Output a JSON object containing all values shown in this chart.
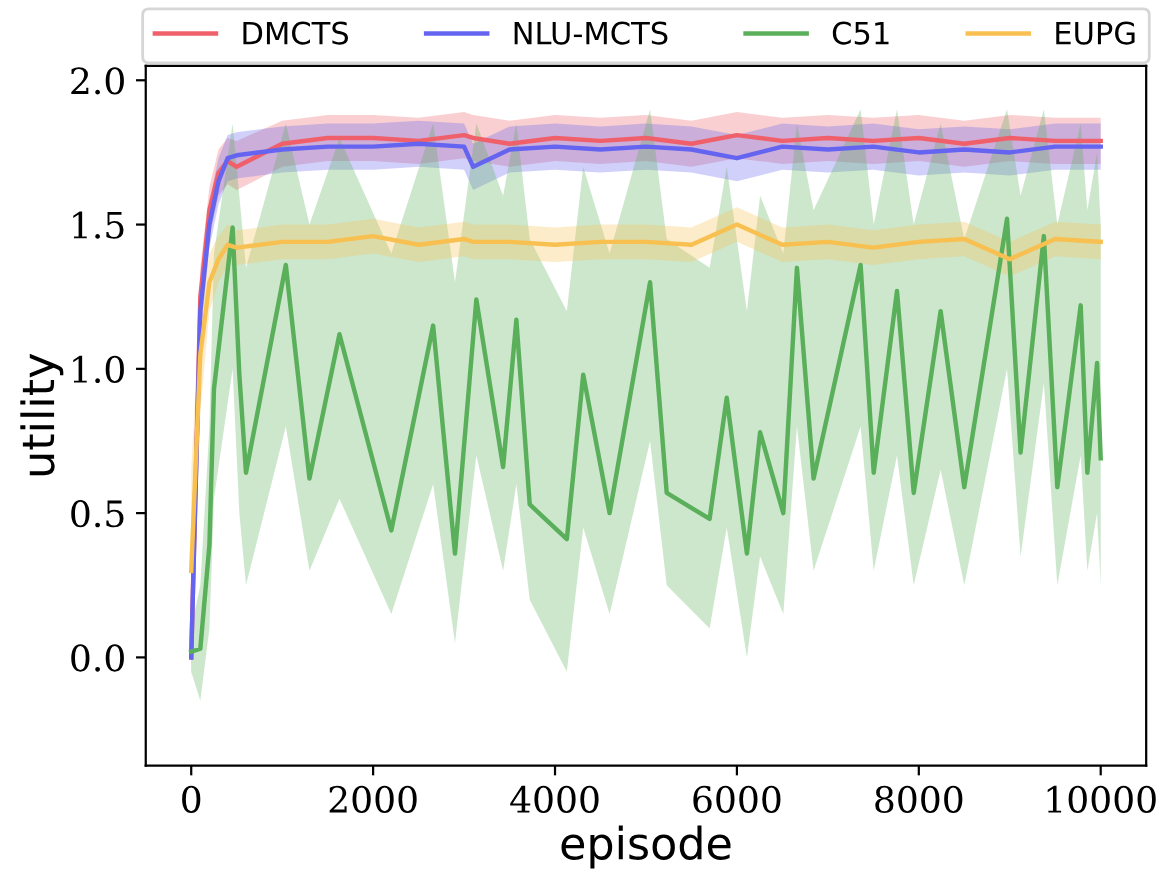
{
  "chart_data": {
    "type": "line",
    "xlabel": "episode",
    "ylabel": "utility",
    "xlim": [
      -500,
      10500
    ],
    "ylim": [
      -0.375,
      2.05
    ],
    "xticks": [
      0,
      2000,
      4000,
      6000,
      8000,
      10000
    ],
    "yticks": [
      {
        "value": 0,
        "label": "0.0"
      },
      {
        "value": 0.5,
        "label": "0.5"
      },
      {
        "value": 1,
        "label": "1.0"
      },
      {
        "value": 1.5,
        "label": "1.5"
      },
      {
        "value": 2,
        "label": "2.0"
      }
    ],
    "grid": false,
    "legend": "top",
    "marker": "none",
    "line_style": "solid",
    "series": [
      {
        "name": "DMCTS",
        "color": "#f0606a",
        "x": [
          0,
          100,
          200,
          300,
          400,
          500,
          1000,
          1500,
          2000,
          2500,
          3000,
          3100,
          3500,
          4000,
          4500,
          5000,
          5500,
          6000,
          6500,
          7000,
          7500,
          8000,
          8500,
          9000,
          9500,
          10000
        ],
        "values": [
          0.0,
          1.25,
          1.55,
          1.68,
          1.72,
          1.7,
          1.78,
          1.8,
          1.8,
          1.79,
          1.81,
          1.8,
          1.78,
          1.8,
          1.79,
          1.8,
          1.78,
          1.81,
          1.79,
          1.8,
          1.79,
          1.8,
          1.78,
          1.8,
          1.79,
          1.79
        ],
        "lower": [
          -0.02,
          1.15,
          1.46,
          1.6,
          1.64,
          1.62,
          1.7,
          1.72,
          1.72,
          1.71,
          1.73,
          1.72,
          1.7,
          1.72,
          1.71,
          1.72,
          1.7,
          1.73,
          1.71,
          1.72,
          1.71,
          1.72,
          1.7,
          1.72,
          1.71,
          1.71
        ],
        "upper": [
          0.02,
          1.35,
          1.63,
          1.76,
          1.8,
          1.79,
          1.86,
          1.88,
          1.88,
          1.87,
          1.89,
          1.88,
          1.86,
          1.88,
          1.87,
          1.88,
          1.86,
          1.89,
          1.87,
          1.88,
          1.87,
          1.88,
          1.86,
          1.88,
          1.87,
          1.87
        ]
      },
      {
        "name": "NLU-MCTS",
        "color": "#6464f0",
        "x": [
          0,
          100,
          200,
          300,
          400,
          500,
          1000,
          1500,
          2000,
          2500,
          3000,
          3100,
          3500,
          4000,
          4500,
          5000,
          5500,
          6000,
          6500,
          7000,
          7500,
          8000,
          8500,
          9000,
          9500,
          10000
        ],
        "values": [
          0.0,
          1.2,
          1.5,
          1.65,
          1.73,
          1.74,
          1.76,
          1.77,
          1.77,
          1.78,
          1.77,
          1.7,
          1.76,
          1.77,
          1.76,
          1.77,
          1.76,
          1.73,
          1.77,
          1.76,
          1.77,
          1.75,
          1.76,
          1.75,
          1.77,
          1.77
        ],
        "lower": [
          -0.02,
          1.1,
          1.42,
          1.57,
          1.65,
          1.66,
          1.68,
          1.69,
          1.69,
          1.7,
          1.69,
          1.62,
          1.68,
          1.69,
          1.68,
          1.69,
          1.68,
          1.65,
          1.69,
          1.68,
          1.69,
          1.67,
          1.68,
          1.67,
          1.69,
          1.69
        ],
        "upper": [
          0.02,
          1.3,
          1.58,
          1.73,
          1.81,
          1.82,
          1.84,
          1.85,
          1.85,
          1.86,
          1.85,
          1.78,
          1.84,
          1.85,
          1.84,
          1.85,
          1.84,
          1.81,
          1.85,
          1.84,
          1.85,
          1.83,
          1.84,
          1.83,
          1.85,
          1.85
        ]
      },
      {
        "name": "C51",
        "color": "#5aaf5a",
        "x": [
          0,
          100,
          200,
          250,
          455,
          529,
          602,
          1040,
          1300,
          1630,
          2200,
          2660,
          2900,
          3135,
          3429,
          3575,
          3722,
          4130,
          4310,
          4600,
          5045,
          5228,
          5700,
          5888,
          6110,
          6255,
          6510,
          6660,
          6843,
          7360,
          7504,
          7760,
          7944,
          8240,
          8500,
          8970,
          9119,
          9375,
          9523,
          9780,
          9853,
          9960,
          10000
        ],
        "values": [
          0.02,
          0.03,
          0.39,
          0.93,
          1.49,
          0.98,
          0.64,
          1.36,
          0.62,
          1.12,
          0.44,
          1.15,
          0.36,
          1.24,
          0.66,
          1.17,
          0.53,
          0.41,
          0.98,
          0.5,
          1.3,
          0.57,
          0.48,
          0.9,
          0.36,
          0.78,
          0.5,
          1.35,
          0.62,
          1.36,
          0.64,
          1.27,
          0.57,
          1.2,
          0.59,
          1.52,
          0.71,
          1.46,
          0.59,
          1.22,
          0.64,
          1.02,
          0.69
        ],
        "lower": [
          -0.05,
          -0.15,
          0.1,
          0.55,
          1.0,
          0.5,
          0.25,
          0.8,
          0.3,
          0.55,
          0.15,
          0.6,
          0.05,
          0.7,
          0.3,
          0.6,
          0.2,
          -0.05,
          0.45,
          0.15,
          0.75,
          0.25,
          0.1,
          0.45,
          0.0,
          0.35,
          0.15,
          0.8,
          0.3,
          0.8,
          0.3,
          0.7,
          0.25,
          0.65,
          0.25,
          1.0,
          0.35,
          0.95,
          0.25,
          0.7,
          0.3,
          0.5,
          0.25
        ],
        "upper": [
          0.1,
          0.25,
          0.8,
          1.4,
          1.85,
          1.6,
          1.35,
          1.85,
          1.5,
          1.8,
          1.4,
          1.85,
          1.3,
          1.85,
          1.6,
          1.85,
          1.45,
          1.2,
          1.7,
          1.4,
          1.9,
          1.45,
          1.35,
          1.7,
          1.2,
          1.6,
          1.4,
          1.85,
          1.55,
          1.9,
          1.5,
          1.9,
          1.5,
          1.85,
          1.45,
          1.9,
          1.6,
          1.9,
          1.5,
          1.85,
          1.55,
          1.75,
          1.5
        ]
      },
      {
        "name": "EUPG",
        "color": "#f8c050",
        "x": [
          0,
          100,
          200,
          300,
          400,
          500,
          1000,
          1500,
          2000,
          2500,
          3000,
          3100,
          3500,
          4000,
          4500,
          5000,
          5500,
          6000,
          6500,
          7000,
          7500,
          8000,
          8500,
          9000,
          9500,
          10000
        ],
        "values": [
          0.3,
          1.05,
          1.3,
          1.38,
          1.43,
          1.42,
          1.44,
          1.44,
          1.46,
          1.43,
          1.45,
          1.44,
          1.44,
          1.43,
          1.44,
          1.44,
          1.43,
          1.5,
          1.43,
          1.44,
          1.42,
          1.44,
          1.45,
          1.38,
          1.45,
          1.44
        ],
        "lower": [
          -0.08,
          0.85,
          1.2,
          1.3,
          1.36,
          1.36,
          1.38,
          1.38,
          1.4,
          1.37,
          1.39,
          1.38,
          1.38,
          1.37,
          1.38,
          1.38,
          1.37,
          1.44,
          1.37,
          1.38,
          1.36,
          1.38,
          1.39,
          1.32,
          1.39,
          1.38
        ],
        "upper": [
          0.65,
          1.25,
          1.4,
          1.46,
          1.5,
          1.48,
          1.5,
          1.5,
          1.52,
          1.49,
          1.51,
          1.5,
          1.5,
          1.49,
          1.5,
          1.5,
          1.49,
          1.56,
          1.49,
          1.5,
          1.48,
          1.5,
          1.51,
          1.44,
          1.51,
          1.5
        ]
      }
    ]
  }
}
